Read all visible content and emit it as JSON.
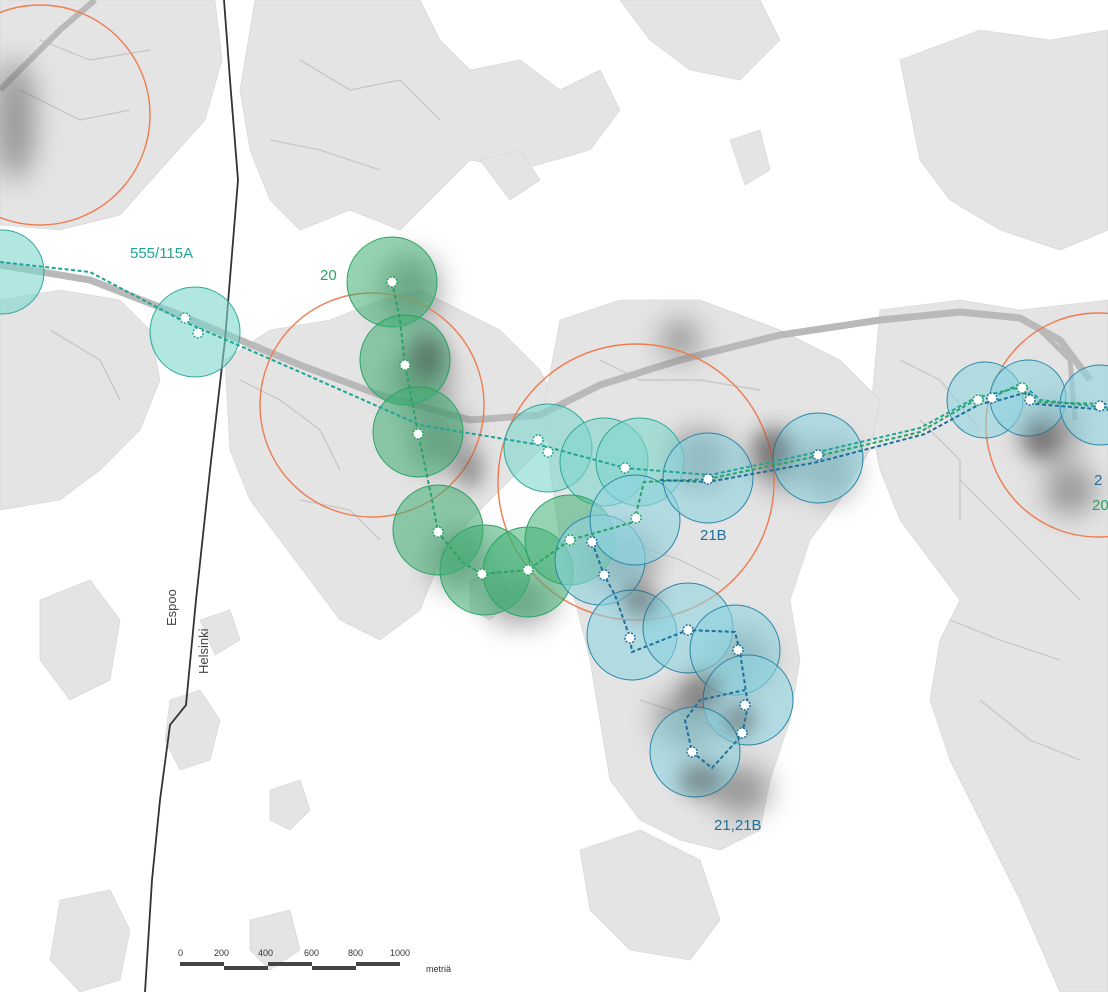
{
  "colors": {
    "land": "#e4e4e4",
    "road": "#c4c4c4",
    "motorway": "#b8b8b8",
    "water": "#ffffff",
    "border": "#333333",
    "green_line": "#2aa364",
    "green_fill": "#3fae73",
    "teal_line": "#1fa596",
    "teal_fill": "#7fd6cc",
    "blue_line": "#1f6f9c",
    "blue_fill": "#8fd3e0",
    "orange_ring": "#ef7b4f",
    "density": "#555555"
  },
  "route_labels": {
    "r555": "555/115A",
    "r20": "20",
    "r21b": "21B",
    "r21_21b": "21,21B",
    "r2_partial": "2",
    "r20_partial": "20"
  },
  "municipalities": {
    "west": "Espoo",
    "east": "Helsinki"
  },
  "scale_bar": {
    "ticks": [
      "0",
      "200",
      "400",
      "600",
      "800",
      "1000"
    ],
    "unit": "metriä"
  }
}
